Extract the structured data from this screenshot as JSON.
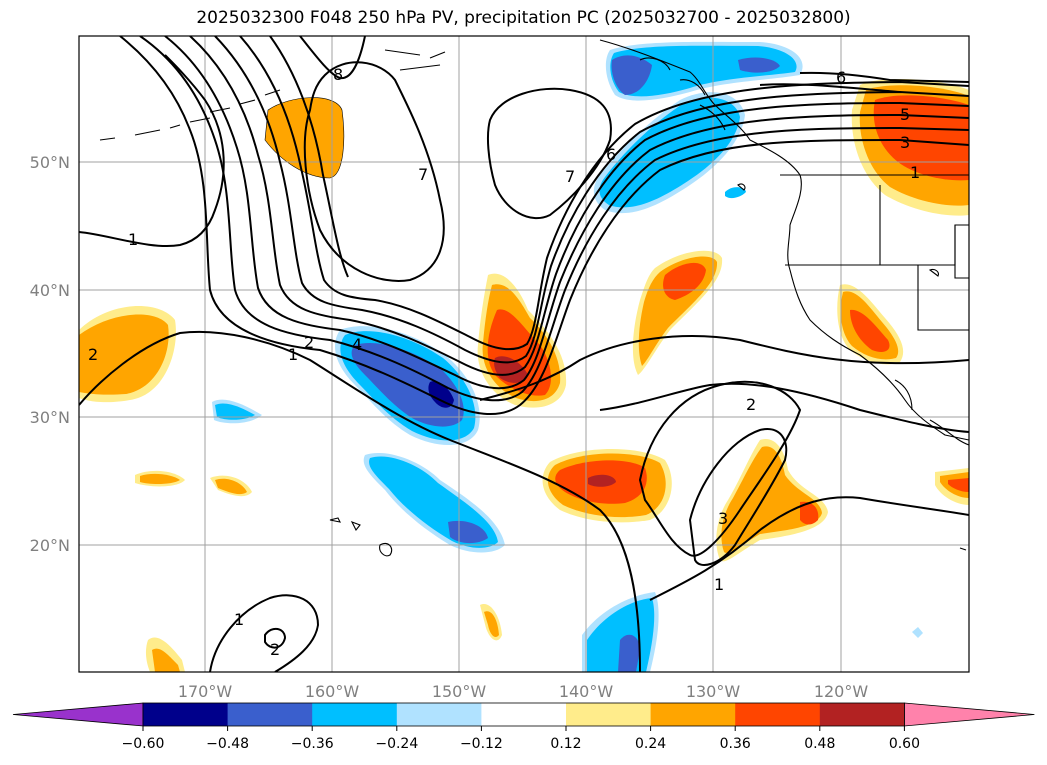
{
  "title": "2025032300 F048 250 hPa PV, precipitation PC (2025032700 - 2025032800)",
  "axes": {
    "lat_labels": [
      "50°N",
      "40°N",
      "30°N",
      "20°N"
    ],
    "lon_labels": [
      "170°W",
      "160°W",
      "150°W",
      "140°W",
      "130°W",
      "120°W"
    ]
  },
  "colorbar": {
    "ticks": [
      "−0.60",
      "−0.48",
      "−0.36",
      "−0.24",
      "−0.12",
      "0.12",
      "0.24",
      "0.36",
      "0.48",
      "0.60"
    ],
    "colors": [
      "#9932cc",
      "#00008b",
      "#3a5fcd",
      "#00bfff",
      "#b0e2ff",
      "#ffffff",
      "#ffec8b",
      "#ffa500",
      "#ff4500",
      "#b22222",
      "#ff82ab"
    ]
  },
  "contour_labels": {
    "pv_1_west": "1",
    "pv_7_center": "7",
    "pv_7_jet": "7",
    "pv_6_jet": "6",
    "pv_6_ne": "6",
    "pv_5_ne": "5",
    "pv_3_ne": "3",
    "pv_1_ne": "1",
    "pv_2_trough": "2",
    "pv_1_trough": "1",
    "pv_4_trough": "4",
    "pv_2_sub": "2",
    "pv_3_sub": "3",
    "pv_1_sub": "1",
    "pv_1_south": "1",
    "pv_2_south": "2",
    "pv_2_west": "2",
    "pv_8_north": "8"
  }
}
